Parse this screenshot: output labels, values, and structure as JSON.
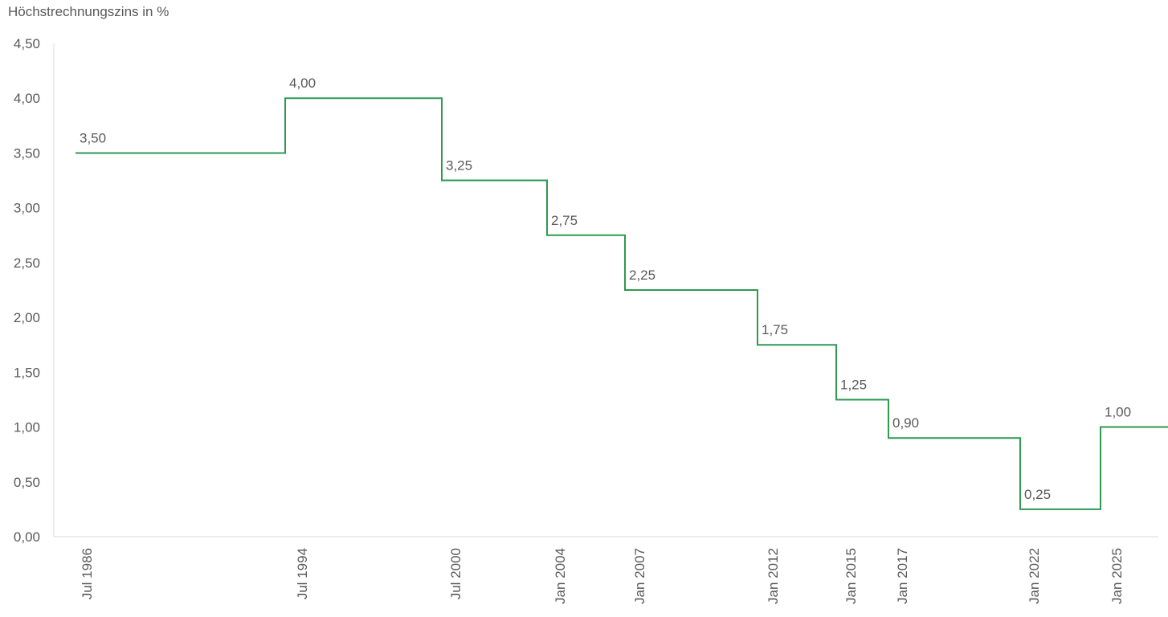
{
  "chart_data": {
    "type": "line",
    "step": true,
    "title": "",
    "ylabel": "Höchstrechnungszins in %",
    "xlabel": "",
    "ylim": [
      0,
      4.5
    ],
    "y_ticks": [
      "0,00",
      "0,50",
      "1,00",
      "1,50",
      "2,00",
      "2,50",
      "3,00",
      "3,50",
      "4,00",
      "4,50"
    ],
    "grid": false,
    "legend": "none",
    "line_color": "#2e9a52",
    "x": [
      "Jul 1986",
      "Jul 1994",
      "Jul 2000",
      "Jan 2004",
      "Jan 2007",
      "Jan 2012",
      "Jan 2015",
      "Jan 2017",
      "Jan 2022",
      "Jan 2025"
    ],
    "values": [
      3.5,
      4.0,
      3.25,
      2.75,
      2.25,
      1.75,
      1.25,
      0.9,
      0.25,
      1.0
    ],
    "data_labels": [
      "3,50",
      "4,00",
      "3,25",
      "2,75",
      "2,25",
      "1,75",
      "1,25",
      "0,90",
      "0,25",
      "1,00"
    ]
  }
}
